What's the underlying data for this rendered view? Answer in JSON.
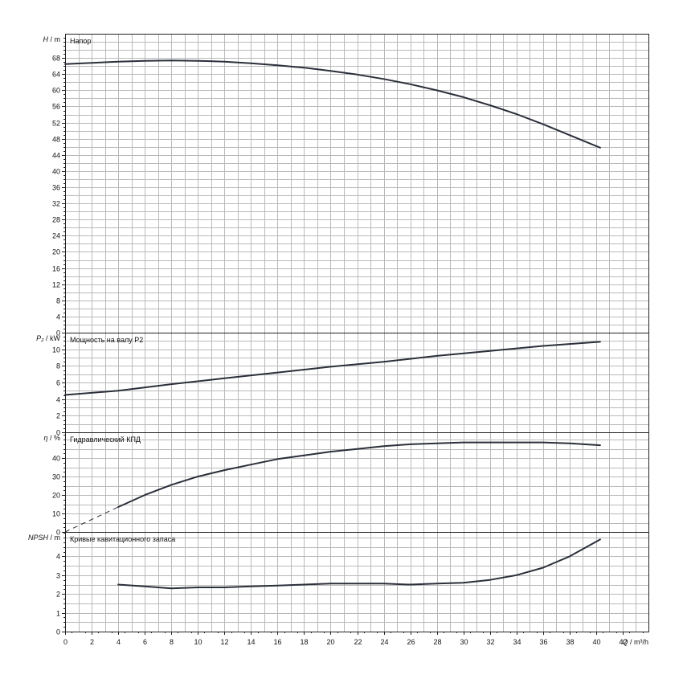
{
  "chart_data": [
    {
      "type": "line",
      "panel": "head",
      "title": "Напор",
      "ylabel": "H",
      "yunit": "m",
      "ylim": [
        0,
        74
      ],
      "yticks": [
        0,
        4,
        8,
        12,
        16,
        20,
        24,
        28,
        32,
        36,
        40,
        44,
        48,
        52,
        56,
        60,
        64,
        68
      ],
      "series": [
        {
          "x": [
            0,
            2,
            4,
            6,
            8,
            10,
            12,
            14,
            16,
            18,
            20,
            22,
            24,
            26,
            28,
            30,
            32,
            34,
            36,
            38,
            40.3
          ],
          "y": [
            66.5,
            66.8,
            67.1,
            67.3,
            67.4,
            67.3,
            67.1,
            66.7,
            66.2,
            65.6,
            64.8,
            63.9,
            62.8,
            61.5,
            60.0,
            58.3,
            56.3,
            54.1,
            51.6,
            48.9,
            45.8
          ]
        }
      ]
    },
    {
      "type": "line",
      "panel": "power",
      "title": "Мощность на валу P2",
      "ylabel": "P₂",
      "yunit": "kW",
      "ylim": [
        0,
        12
      ],
      "yticks": [
        0,
        2,
        4,
        6,
        8,
        10
      ],
      "series": [
        {
          "x": [
            0,
            4,
            8,
            12,
            16,
            20,
            24,
            28,
            32,
            36,
            40.3
          ],
          "y": [
            4.5,
            5.0,
            5.8,
            6.5,
            7.2,
            7.9,
            8.5,
            9.2,
            9.8,
            10.4,
            10.9
          ]
        }
      ]
    },
    {
      "type": "line",
      "panel": "efficiency",
      "title": "Гидравлический КПД",
      "ylabel": "η",
      "yunit": "%",
      "ylim": [
        0,
        54
      ],
      "yticks": [
        0,
        10,
        20,
        30,
        40
      ],
      "series": [
        {
          "x": [
            4,
            6,
            8,
            10,
            12,
            14,
            16,
            18,
            20,
            22,
            24,
            26,
            28,
            30,
            32,
            34,
            36,
            38,
            40.3
          ],
          "y": [
            13.5,
            20,
            25.5,
            30,
            33.5,
            36.5,
            39.5,
            41.5,
            43.5,
            45,
            46.5,
            47.5,
            48,
            48.5,
            48.5,
            48.5,
            48.5,
            48,
            47
          ]
        }
      ],
      "dashed_extension": {
        "x": [
          0,
          4
        ],
        "y": [
          0,
          13.5
        ]
      }
    },
    {
      "type": "line",
      "panel": "npsh",
      "title": "Кривые кавитационного запаса",
      "ylabel": "NPSH",
      "yunit": "m",
      "ylim": [
        0,
        5.3
      ],
      "yticks": [
        0,
        1,
        2,
        3,
        4
      ],
      "series": [
        {
          "x": [
            4,
            6,
            8,
            10,
            12,
            14,
            16,
            18,
            20,
            22,
            24,
            26,
            28,
            30,
            32,
            34,
            36,
            38,
            40.3
          ],
          "y": [
            2.5,
            2.4,
            2.3,
            2.35,
            2.35,
            2.4,
            2.45,
            2.5,
            2.55,
            2.55,
            2.55,
            2.5,
            2.55,
            2.6,
            2.75,
            3.0,
            3.4,
            4.0,
            4.9
          ]
        }
      ]
    }
  ],
  "x_axis": {
    "label": "Q",
    "unit": "m³/h",
    "xlim": [
      0,
      44
    ],
    "ticks": [
      0,
      2,
      4,
      6,
      8,
      10,
      12,
      14,
      16,
      18,
      20,
      22,
      24,
      26,
      28,
      30,
      32,
      34,
      36,
      38,
      40,
      42
    ]
  }
}
